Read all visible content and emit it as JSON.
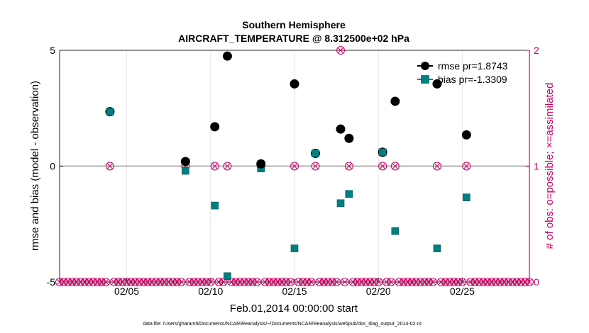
{
  "chart_data": {
    "type": "scatter",
    "title_line1": "Southern Hemisphere",
    "title_line2": "AIRCRAFT_TEMPERATURE @ 8.312500e+02 hPa",
    "xlabel": "Feb.01,2014 00:00:00 start",
    "ylabel_left": "rmse and bias (model - observation)",
    "ylabel_right": "# of obs: o=possible; ×=assimilated",
    "footer": "data file: /Users/gharamti/Documents/NCAR/Reanalysis/~/Documents/NCAR/Reanalysis/webpub/obs_diag_output_2014-02.nc",
    "xlim": [
      1,
      29
    ],
    "ylim_left": [
      -5,
      5
    ],
    "ylim_right": [
      0,
      2
    ],
    "x_ticks": [
      5,
      10,
      15,
      20,
      25
    ],
    "x_tick_labels": [
      "02/05",
      "02/10",
      "02/15",
      "02/20",
      "02/25"
    ],
    "y_ticks_left": [
      -5,
      0,
      5
    ],
    "y_tick_labels_left": [
      "-5",
      "0",
      "5"
    ],
    "y_ticks_right": [
      0,
      1,
      2
    ],
    "y_tick_labels_right": [
      "0",
      "1",
      "2"
    ],
    "colors": {
      "rmse": "#000000",
      "bias": "#008080",
      "obs": "#cc0066",
      "zero_line": "#b3b3b3",
      "grid": "#e6e6e6"
    },
    "series": [
      {
        "name": "rmse",
        "legend": "rmse pr=1.8743",
        "x": [
          4.0,
          8.5,
          10.25,
          11.0,
          13.0,
          15.0,
          16.25,
          17.75,
          18.25,
          20.25,
          21.0,
          23.5,
          25.25
        ],
        "values": [
          2.35,
          0.2,
          1.7,
          4.75,
          0.1,
          3.55,
          0.55,
          1.6,
          1.2,
          0.6,
          2.8,
          3.55,
          1.35
        ]
      },
      {
        "name": "bias",
        "legend": "bias pr=-1.3309",
        "x": [
          4.0,
          8.5,
          10.25,
          11.0,
          13.0,
          15.0,
          16.25,
          17.75,
          18.25,
          20.25,
          21.0,
          23.5,
          25.25
        ],
        "values": [
          2.35,
          -0.2,
          -1.7,
          -4.75,
          -0.1,
          -3.55,
          0.55,
          -1.6,
          -1.2,
          0.6,
          -2.8,
          -3.55,
          -1.35
        ]
      },
      {
        "name": "obs_count",
        "axis": "right",
        "x_one": [
          4.0,
          8.5,
          10.25,
          11.0,
          13.0,
          15.0,
          16.25,
          18.25,
          20.25,
          21.0,
          23.5,
          25.25
        ],
        "x_two": [
          17.75
        ]
      }
    ]
  }
}
